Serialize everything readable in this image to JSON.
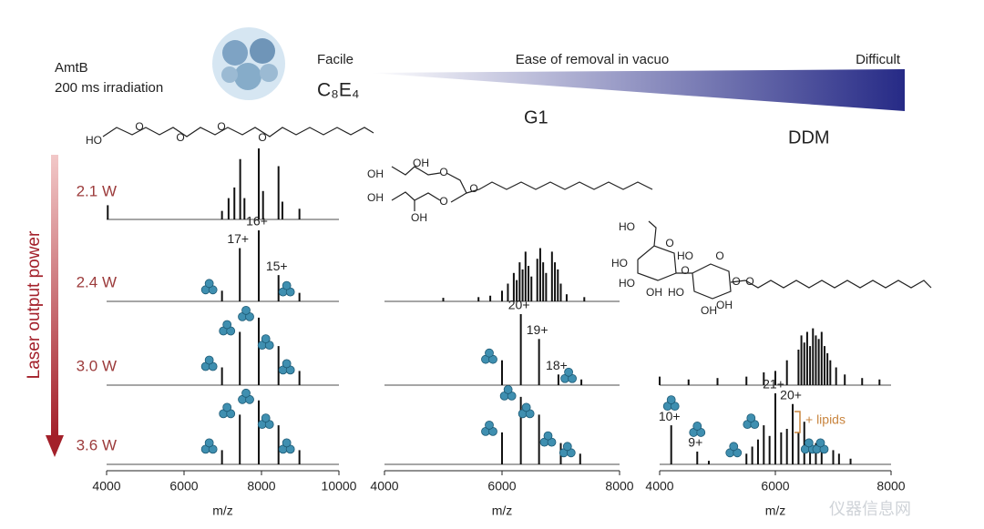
{
  "header": {
    "sample": "AmtB",
    "irradiation": "200 ms irradiation",
    "facile": "Facile",
    "gradient_label": "Ease of removal in vacuo",
    "difficult": "Difficult",
    "power_axis": "Laser output power",
    "powers": [
      "2.1 W",
      "2.4 W",
      "3.0 W",
      "3.6 W"
    ],
    "watermark": "仪器信息网"
  },
  "structures": {
    "c8e4": [
      "HO",
      "O",
      "O",
      "O",
      "O"
    ],
    "g1": [
      "OH",
      "OH",
      "OH",
      "OH",
      "O",
      "O",
      "O"
    ],
    "ddm": [
      "HO",
      "O",
      "HO",
      "HO",
      "OH",
      "O",
      "HO",
      "O",
      "HO",
      "OH",
      "O",
      "OH",
      "O"
    ]
  },
  "annotation": "+ lipids",
  "chart_data": [
    {
      "type": "spectrum",
      "name": "C₈E₄",
      "xlabel": "m/z",
      "xlim": [
        4000,
        10000
      ],
      "xticks": [
        4000,
        6000,
        8000,
        10000
      ],
      "color": "#111111",
      "icon_color": "#3f8fb0",
      "traces": [
        {
          "power_index": 0,
          "peaks": [
            {
              "mz": 4030,
              "intensity": 20
            },
            {
              "mz": 6980,
              "intensity": 12
            },
            {
              "mz": 7150,
              "intensity": 30
            },
            {
              "mz": 7300,
              "intensity": 45
            },
            {
              "mz": 7450,
              "intensity": 85
            },
            {
              "mz": 7560,
              "intensity": 30
            },
            {
              "mz": 7930,
              "intensity": 100
            },
            {
              "mz": 8040,
              "intensity": 40
            },
            {
              "mz": 8440,
              "intensity": 75
            },
            {
              "mz": 8540,
              "intensity": 25
            },
            {
              "mz": 8980,
              "intensity": 15
            }
          ]
        },
        {
          "power_index": 1,
          "peaks": [
            {
              "mz": 6980,
              "intensity": 15,
              "icon": true
            },
            {
              "mz": 7440,
              "intensity": 75,
              "label": "17+"
            },
            {
              "mz": 7930,
              "intensity": 100,
              "label": "16+"
            },
            {
              "mz": 8440,
              "intensity": 37,
              "label": "15+"
            },
            {
              "mz": 8980,
              "intensity": 12,
              "icon": true
            }
          ]
        },
        {
          "power_index": 2,
          "peaks": [
            {
              "mz": 6980,
              "intensity": 25,
              "icon": true
            },
            {
              "mz": 7440,
              "intensity": 75,
              "icon": true
            },
            {
              "mz": 7930,
              "intensity": 95,
              "icon": true
            },
            {
              "mz": 8440,
              "intensity": 55,
              "icon": true
            },
            {
              "mz": 8980,
              "intensity": 20,
              "icon": true
            }
          ]
        },
        {
          "power_index": 3,
          "peaks": [
            {
              "mz": 6980,
              "intensity": 20,
              "icon": true
            },
            {
              "mz": 7440,
              "intensity": 70,
              "icon": true
            },
            {
              "mz": 7930,
              "intensity": 90,
              "icon": true
            },
            {
              "mz": 8440,
              "intensity": 55,
              "icon": true
            },
            {
              "mz": 8980,
              "intensity": 20,
              "icon": true
            }
          ]
        }
      ]
    },
    {
      "type": "spectrum",
      "name": "G1",
      "xlabel": "m/z",
      "xlim": [
        4000,
        8000
      ],
      "xticks": [
        4000,
        6000,
        8000
      ],
      "color": "#111111",
      "icon_color": "#3f8fb0",
      "traces": [
        {
          "power_index": 1,
          "peaks": [
            {
              "mz": 5000,
              "intensity": 5
            },
            {
              "mz": 5600,
              "intensity": 6
            },
            {
              "mz": 5800,
              "intensity": 8
            },
            {
              "mz": 6000,
              "intensity": 15
            },
            {
              "mz": 6100,
              "intensity": 25
            },
            {
              "mz": 6200,
              "intensity": 40
            },
            {
              "mz": 6250,
              "intensity": 30
            },
            {
              "mz": 6300,
              "intensity": 55
            },
            {
              "mz": 6350,
              "intensity": 45
            },
            {
              "mz": 6400,
              "intensity": 70
            },
            {
              "mz": 6450,
              "intensity": 50
            },
            {
              "mz": 6500,
              "intensity": 35
            },
            {
              "mz": 6600,
              "intensity": 60
            },
            {
              "mz": 6650,
              "intensity": 75
            },
            {
              "mz": 6700,
              "intensity": 55
            },
            {
              "mz": 6750,
              "intensity": 40
            },
            {
              "mz": 6850,
              "intensity": 70
            },
            {
              "mz": 6900,
              "intensity": 55
            },
            {
              "mz": 6950,
              "intensity": 45
            },
            {
              "mz": 7000,
              "intensity": 25
            },
            {
              "mz": 7100,
              "intensity": 10
            },
            {
              "mz": 7400,
              "intensity": 6
            }
          ]
        },
        {
          "power_index": 2,
          "peaks": [
            {
              "mz": 6000,
              "intensity": 35,
              "icon": true
            },
            {
              "mz": 6320,
              "intensity": 100,
              "label": "20+"
            },
            {
              "mz": 6630,
              "intensity": 65,
              "label": "19+"
            },
            {
              "mz": 6960,
              "intensity": 15,
              "label": "18+"
            },
            {
              "mz": 7350,
              "intensity": 8,
              "icon": true
            }
          ]
        },
        {
          "power_index": 3,
          "peaks": [
            {
              "mz": 6000,
              "intensity": 45,
              "icon": true
            },
            {
              "mz": 6320,
              "intensity": 95,
              "icon": true
            },
            {
              "mz": 6630,
              "intensity": 70,
              "icon": true
            },
            {
              "mz": 7000,
              "intensity": 30,
              "icon": true
            },
            {
              "mz": 7330,
              "intensity": 15,
              "icon": true
            }
          ]
        }
      ]
    },
    {
      "type": "spectrum",
      "name": "DDM",
      "xlabel": "m/z",
      "xlim": [
        4000,
        8000
      ],
      "xticks": [
        4000,
        6000,
        8000
      ],
      "color": "#111111",
      "icon_color": "#3f8fb0",
      "traces": [
        {
          "power_index": 2,
          "peaks": [
            {
              "mz": 4000,
              "intensity": 12
            },
            {
              "mz": 4500,
              "intensity": 8
            },
            {
              "mz": 5000,
              "intensity": 10
            },
            {
              "mz": 5500,
              "intensity": 12
            },
            {
              "mz": 5800,
              "intensity": 18
            },
            {
              "mz": 6000,
              "intensity": 20
            },
            {
              "mz": 6200,
              "intensity": 35
            },
            {
              "mz": 6400,
              "intensity": 50
            },
            {
              "mz": 6450,
              "intensity": 70
            },
            {
              "mz": 6500,
              "intensity": 60
            },
            {
              "mz": 6550,
              "intensity": 75
            },
            {
              "mz": 6600,
              "intensity": 55
            },
            {
              "mz": 6650,
              "intensity": 80
            },
            {
              "mz": 6700,
              "intensity": 70
            },
            {
              "mz": 6750,
              "intensity": 65
            },
            {
              "mz": 6800,
              "intensity": 75
            },
            {
              "mz": 6850,
              "intensity": 55
            },
            {
              "mz": 6900,
              "intensity": 45
            },
            {
              "mz": 6950,
              "intensity": 35
            },
            {
              "mz": 7050,
              "intensity": 25
            },
            {
              "mz": 7200,
              "intensity": 15
            },
            {
              "mz": 7500,
              "intensity": 10
            },
            {
              "mz": 7800,
              "intensity": 8
            }
          ]
        },
        {
          "power_index": 3,
          "peaks": [
            {
              "mz": 4200,
              "intensity": 55,
              "label": "10+",
              "icon": true
            },
            {
              "mz": 4650,
              "intensity": 18,
              "label": "9+",
              "icon": true
            },
            {
              "mz": 4850,
              "intensity": 5
            },
            {
              "mz": 5500,
              "intensity": 15,
              "icon": true
            },
            {
              "mz": 5600,
              "intensity": 25
            },
            {
              "mz": 5700,
              "intensity": 35
            },
            {
              "mz": 5800,
              "intensity": 55,
              "icon": true
            },
            {
              "mz": 5900,
              "intensity": 40
            },
            {
              "mz": 6000,
              "intensity": 100,
              "label": "21+"
            },
            {
              "mz": 6100,
              "intensity": 45
            },
            {
              "mz": 6200,
              "intensity": 50
            },
            {
              "mz": 6300,
              "intensity": 85,
              "label": "20+"
            },
            {
              "mz": 6400,
              "intensity": 45
            },
            {
              "mz": 6500,
              "intensity": 60
            },
            {
              "mz": 6600,
              "intensity": 35
            },
            {
              "mz": 6700,
              "intensity": 30
            },
            {
              "mz": 6800,
              "intensity": 20,
              "icon": true
            },
            {
              "mz": 7000,
              "intensity": 20,
              "icon": true
            },
            {
              "mz": 7100,
              "intensity": 15
            },
            {
              "mz": 7300,
              "intensity": 8
            }
          ]
        }
      ]
    }
  ]
}
